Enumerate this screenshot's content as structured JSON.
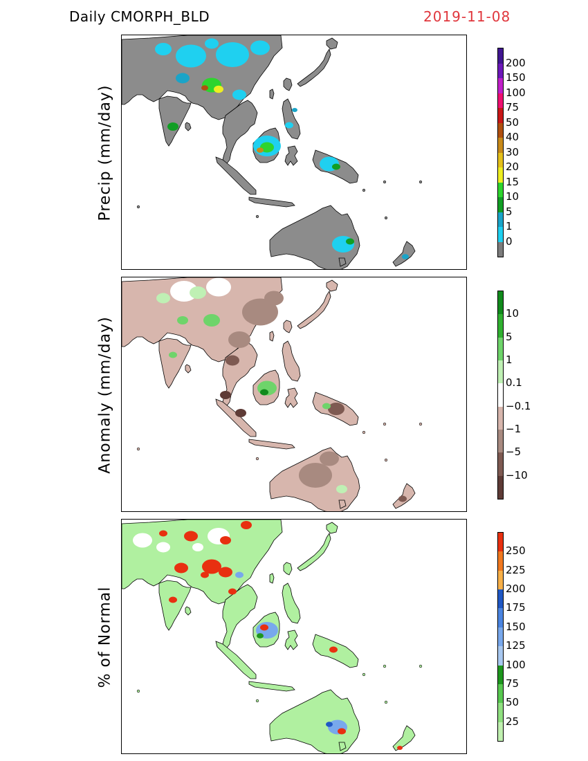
{
  "header": {
    "title": "Daily  CMORPH_BLD",
    "date": "2019-11-08"
  },
  "panels": [
    {
      "ylabel": "Precip  (mm/day)",
      "land_color": "#8c8c8c",
      "colorbar": {
        "colors": [
          "#7c7c7c",
          "#1fd0f0",
          "#1aa4c8",
          "#119e24",
          "#2ed42e",
          "#eeee22",
          "#e4c01c",
          "#c88a1a",
          "#b05010",
          "#c81818",
          "#ee1070",
          "#c020c8",
          "#6c18b8",
          "#401690"
        ],
        "labels": [
          "0",
          "1",
          "5",
          "10",
          "15",
          "20",
          "30",
          "40",
          "50",
          "75",
          "100",
          "150",
          "200"
        ]
      }
    },
    {
      "ylabel": "Anomaly  (mm/day)",
      "land_color": "#d7b6ad",
      "colorbar": {
        "colors": [
          "#5e3b36",
          "#7e5a52",
          "#a88a80",
          "#d7b6ad",
          "#ffffff",
          "#bff0b4",
          "#6ed46a",
          "#30b030",
          "#118a1c"
        ],
        "labels": [
          "−10",
          "−5",
          "−1",
          "−0.1",
          "0.1",
          "1",
          "5",
          "10"
        ]
      }
    },
    {
      "ylabel": "% of Normal",
      "land_color": "#b0f0a0",
      "colorbar": {
        "colors": [
          "#c0f0b0",
          "#90e080",
          "#58c850",
          "#1e961e",
          "#a8c8f0",
          "#78a8ec",
          "#4a84e0",
          "#2058c4",
          "#f8b048",
          "#f07820",
          "#e83010"
        ],
        "labels": [
          "25",
          "50",
          "75",
          "100",
          "125",
          "150",
          "175",
          "200",
          "225",
          "250"
        ]
      }
    }
  ]
}
